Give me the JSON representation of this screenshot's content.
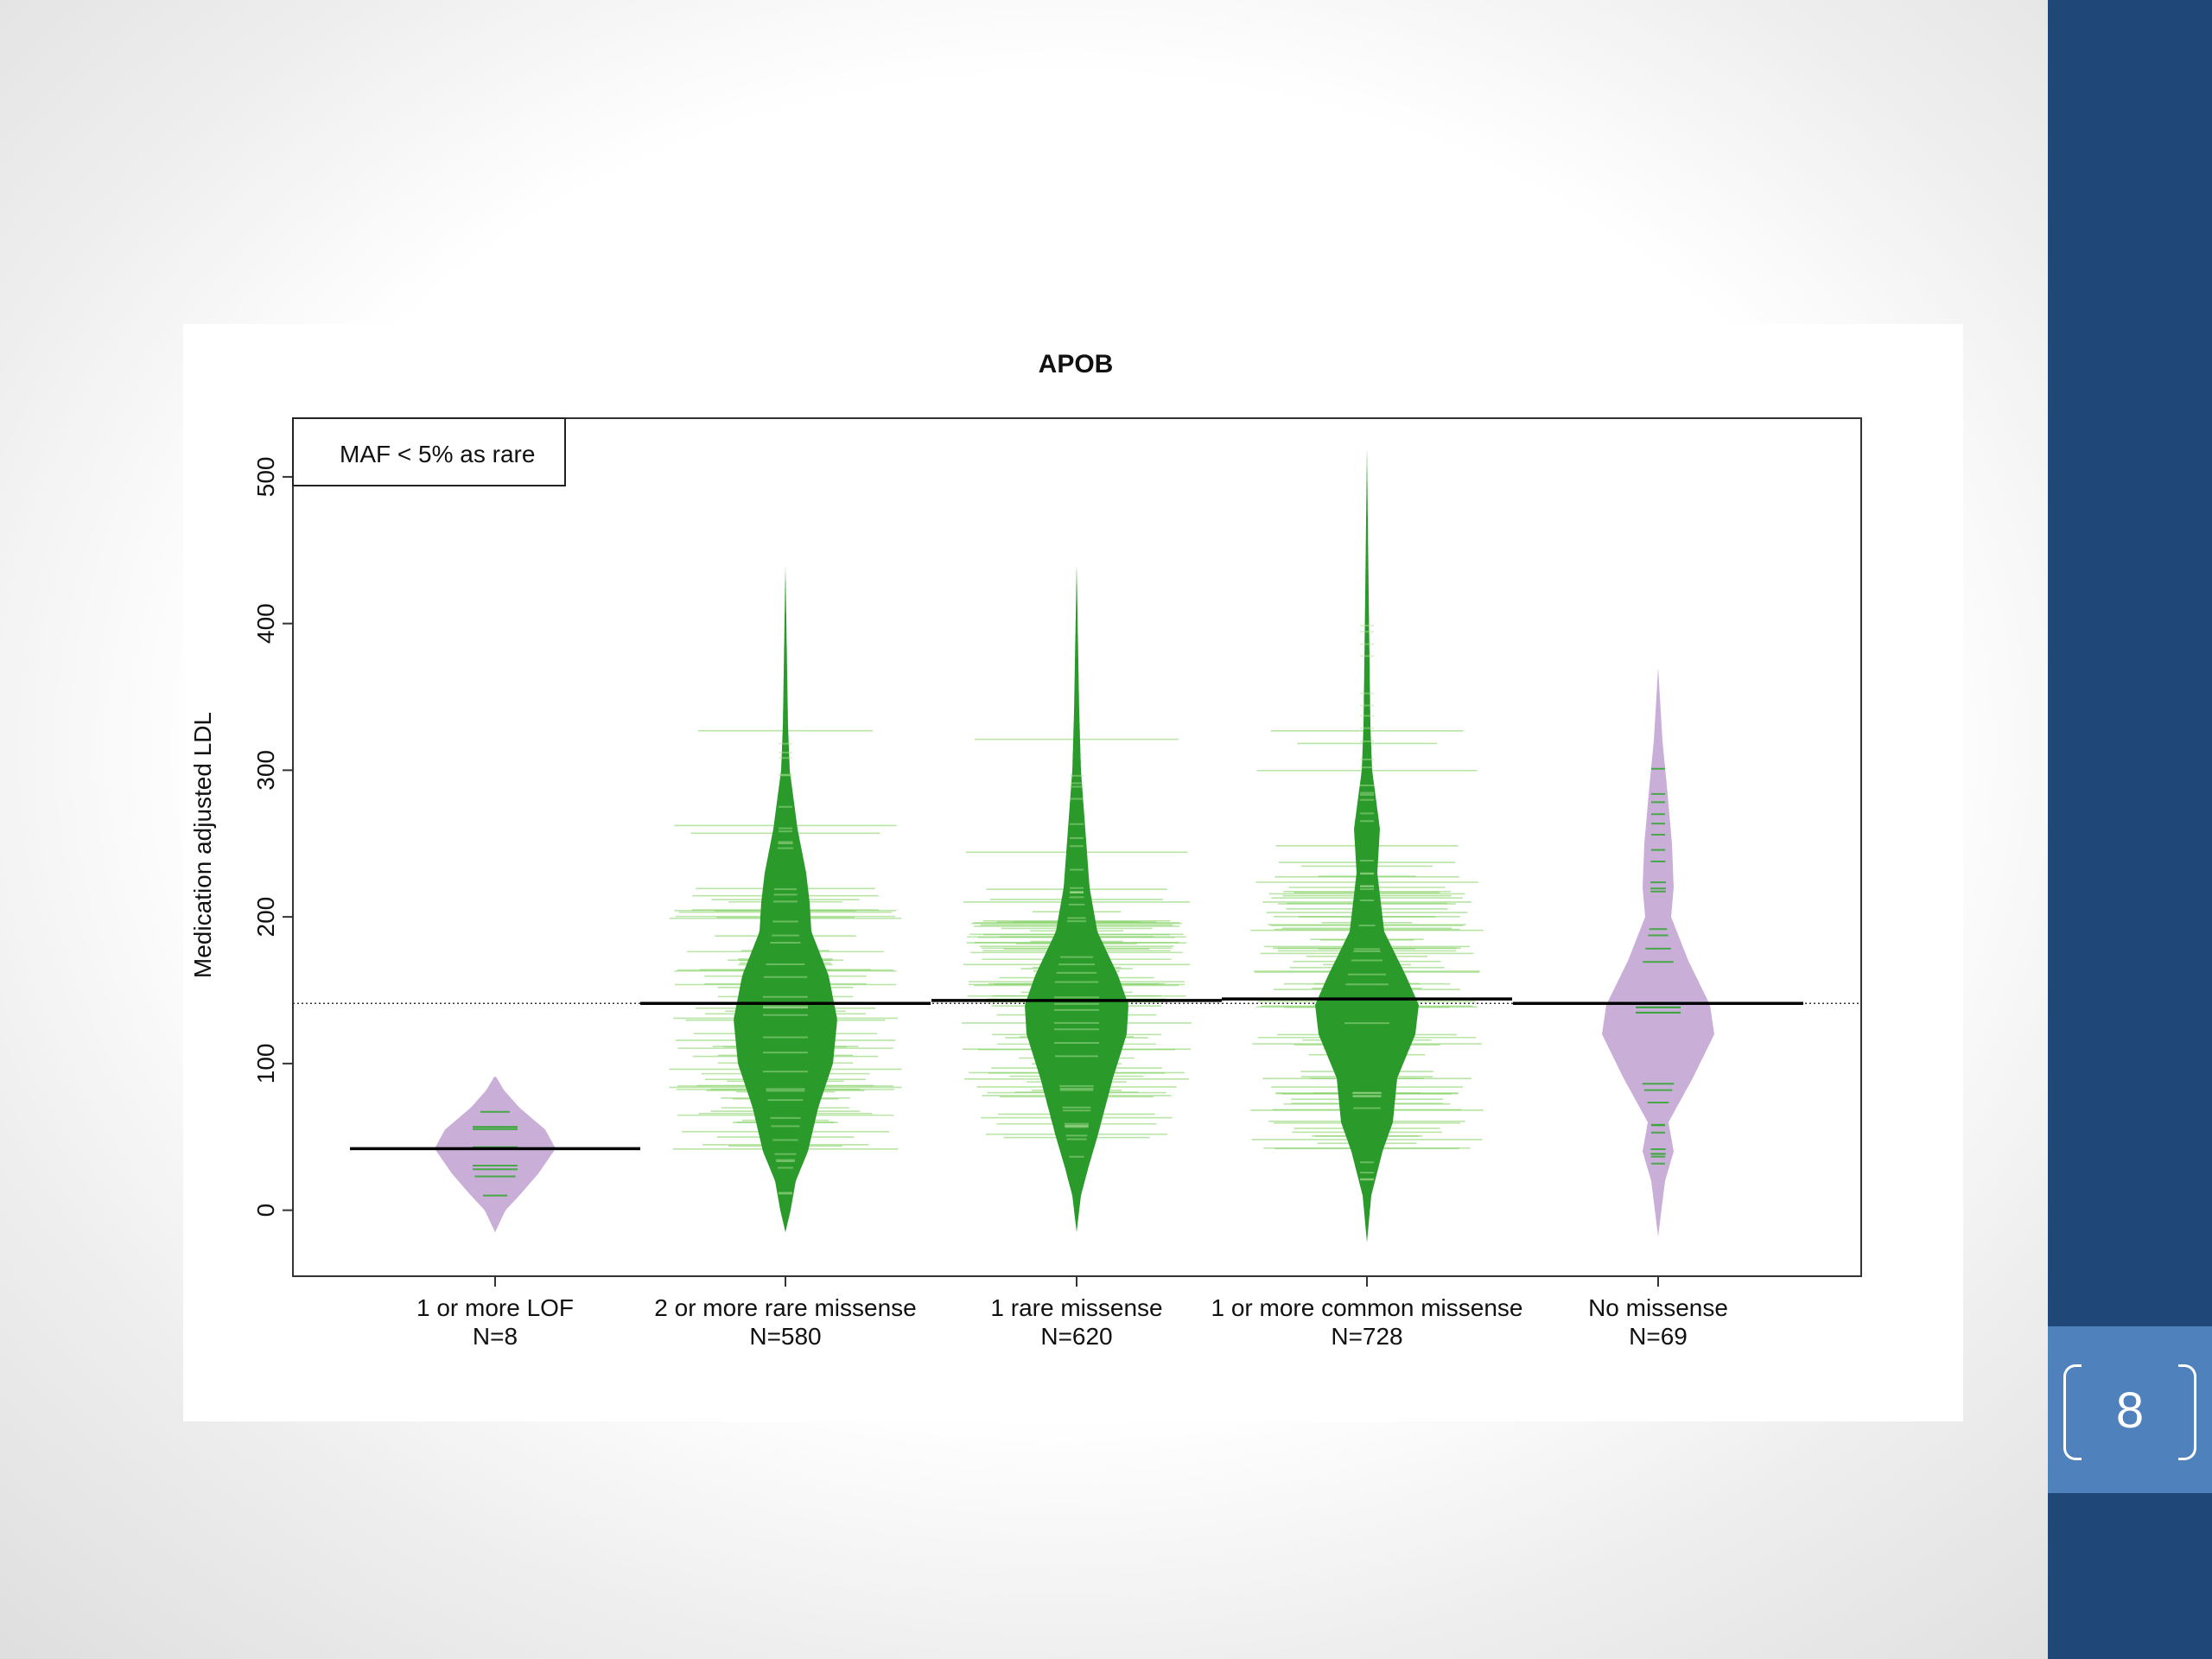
{
  "slide": {
    "page_number": "8",
    "colors": {
      "side_panel": "#1f4878",
      "page_box": "#4f81bd"
    }
  },
  "chart_data": {
    "type": "beanplot",
    "title": "APOB",
    "ylabel": "Medication adjusted LDL",
    "xlabel": "",
    "ylim": [
      -45,
      540
    ],
    "yticks": [
      0,
      100,
      200,
      300,
      400,
      500
    ],
    "legend": {
      "text": "MAF < 5% as rare",
      "placement": "top-left"
    },
    "overall_mean": 141,
    "colors": {
      "bean_rare": "#c9aed8",
      "bean_common": "#2a9a2a",
      "lines": "#7fcf5f",
      "mean": "#000000"
    },
    "categories": [
      {
        "label": "1 or more LOF",
        "n_label": "N=8",
        "mean": 42,
        "fill": "rare"
      },
      {
        "label": "2 or more rare missense",
        "n_label": "N=580",
        "mean": 141,
        "fill": "common"
      },
      {
        "label": "1 rare missense",
        "n_label": "N=620",
        "mean": 143,
        "fill": "common"
      },
      {
        "label": "1 or more common missense",
        "n_label": "N=728",
        "mean": 144,
        "fill": "common"
      },
      {
        "label": "No missense",
        "n_label": "N=69",
        "mean": 141,
        "fill": "rare"
      }
    ]
  }
}
